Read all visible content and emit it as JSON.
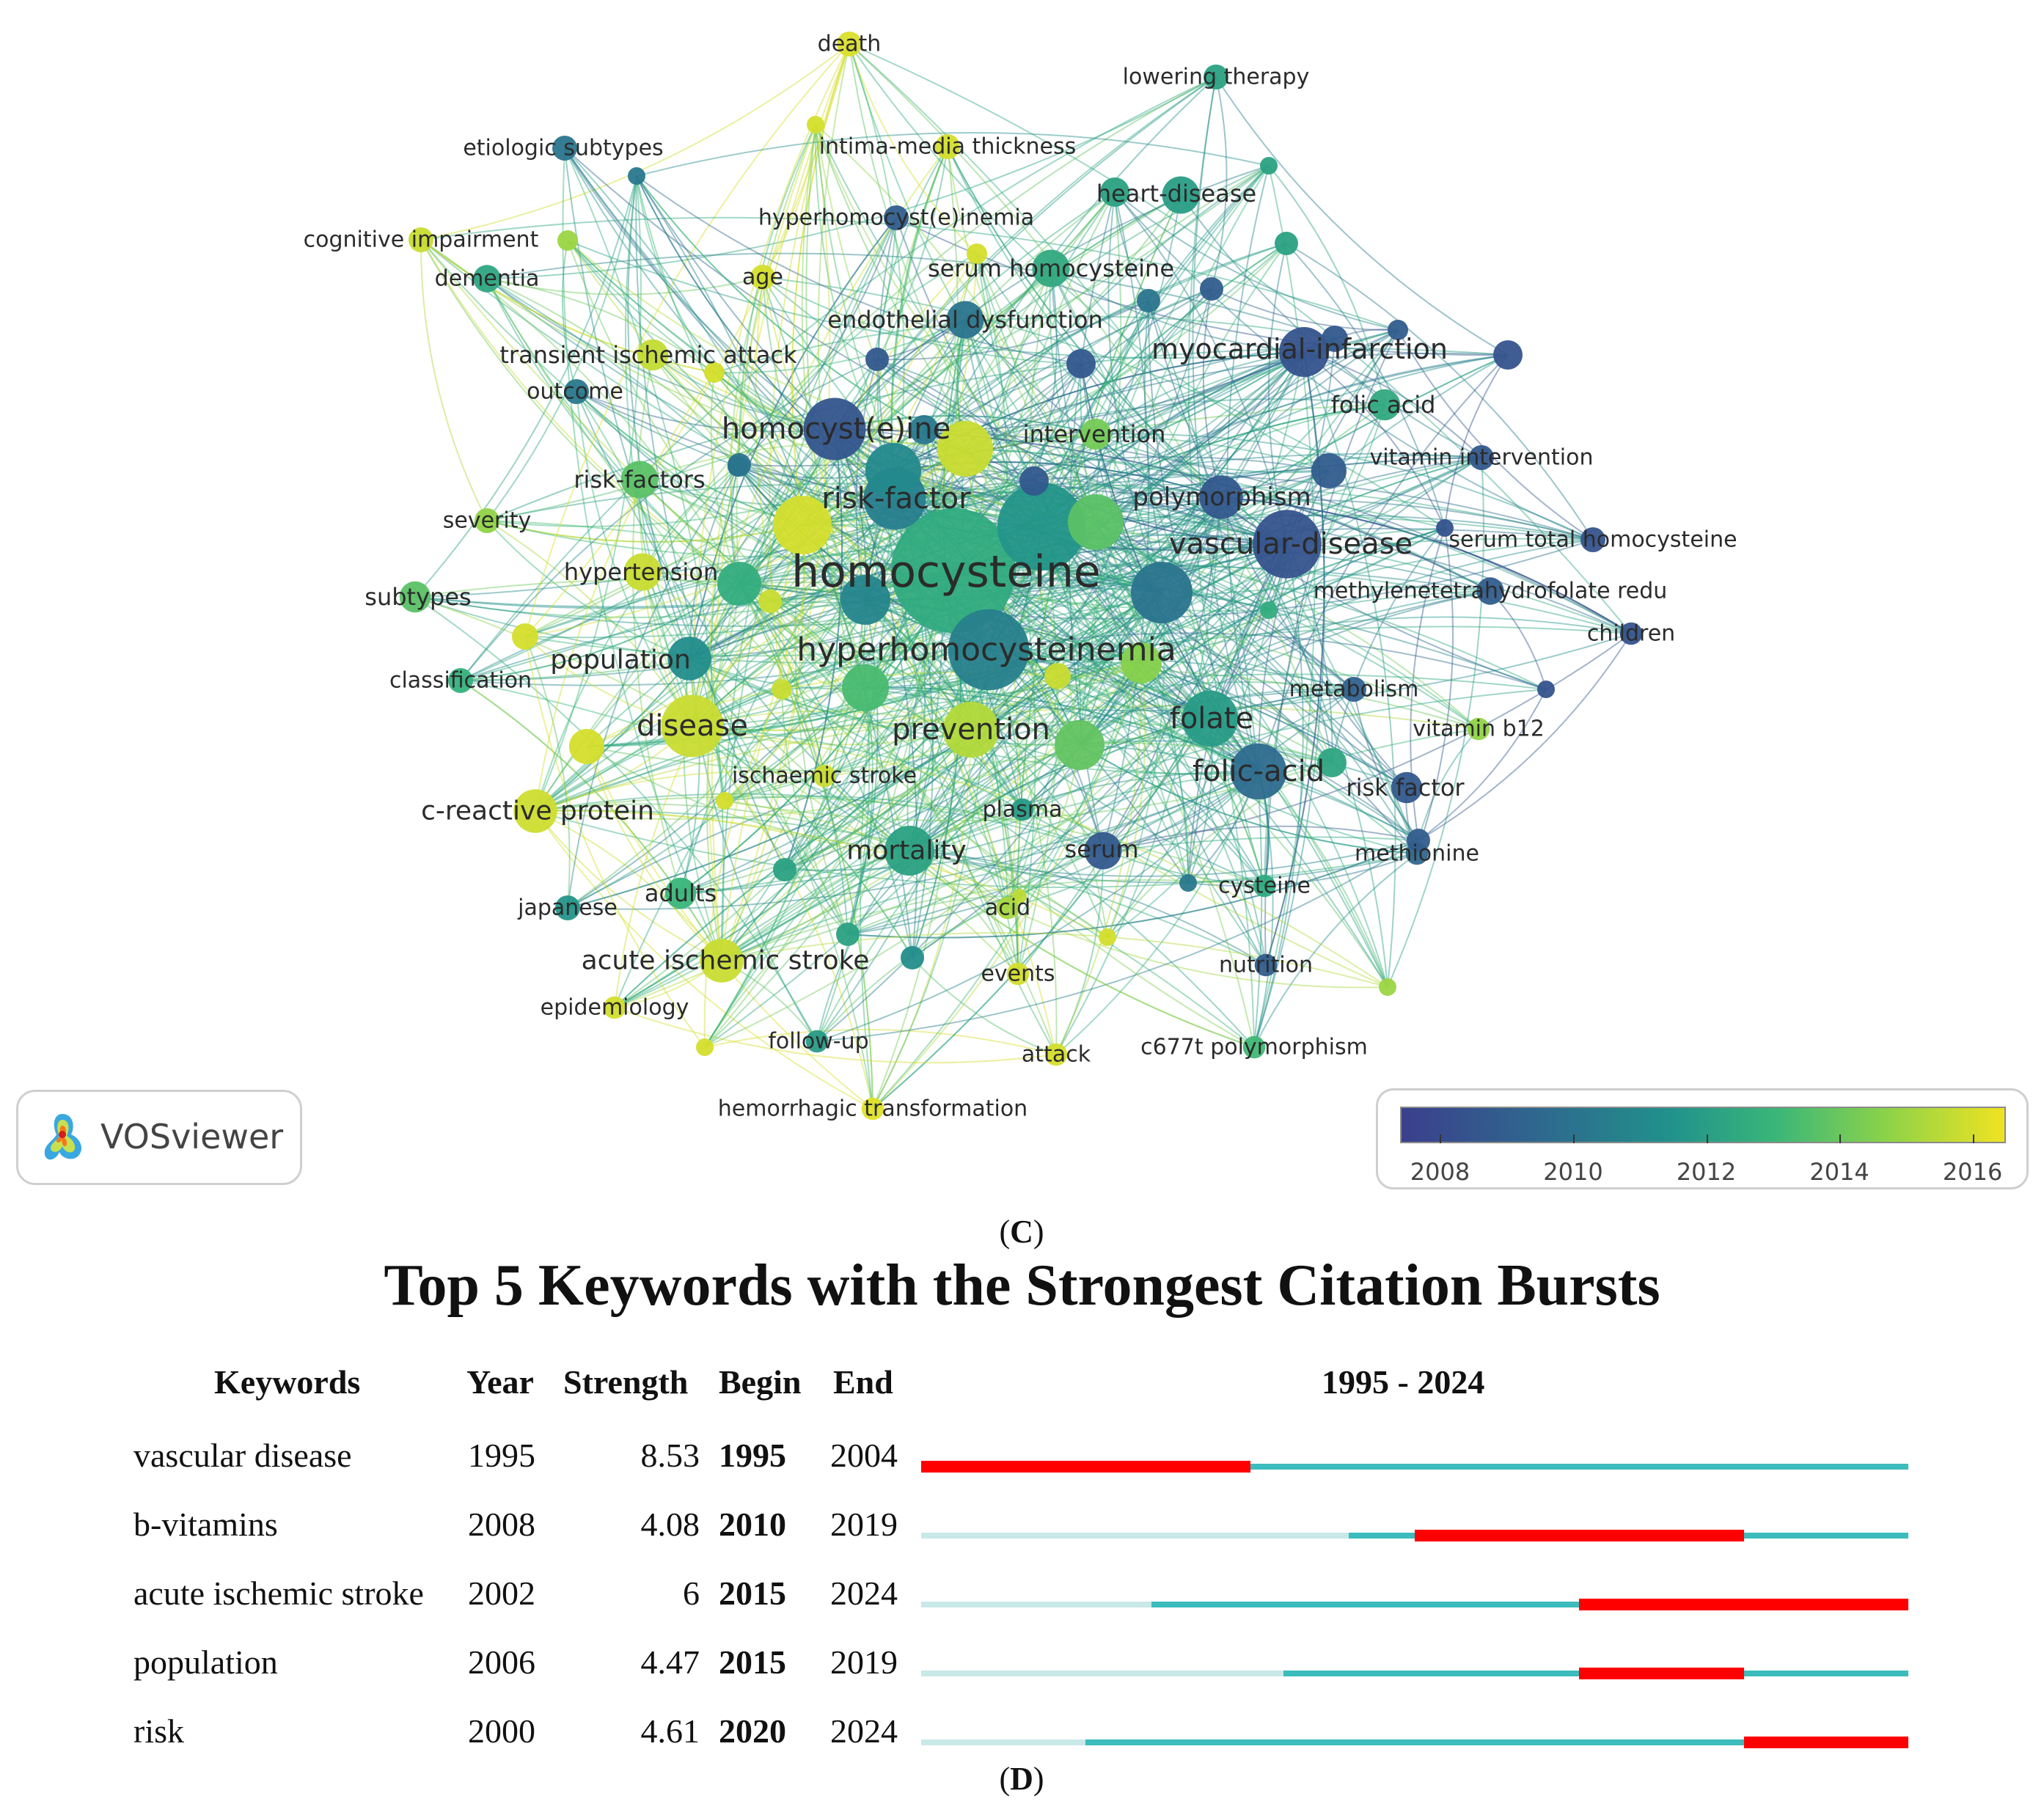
{
  "chart_data": [
    {
      "type": "network",
      "panel": "(C)",
      "tool": "VOSviewer",
      "colorbar": {
        "ticks": [
          2008,
          2010,
          2012,
          2014,
          2016
        ],
        "range": [
          2007.4,
          2016.5
        ],
        "colors": [
          "#3b3f8c",
          "#2d6c8e",
          "#21928b",
          "#3ab679",
          "#8ad24a",
          "#f0e321"
        ]
      },
      "nodes": [
        {
          "label": "homocysteine",
          "year": 2012.3,
          "weight": 10
        },
        {
          "label": "hyperhomocysteinemia",
          "year": 2010.2,
          "weight": 6.5
        },
        {
          "label": "risk-factor",
          "year": 2010.1,
          "weight": 5
        },
        {
          "label": "homocyst(e)ine",
          "year": 2008.3,
          "weight": 5
        },
        {
          "label": "vascular-disease",
          "year": 2008.2,
          "weight": 5.5
        },
        {
          "label": "disease",
          "year": 2015.8,
          "weight": 5
        },
        {
          "label": "prevention",
          "year": 2015.4,
          "weight": 4.5
        },
        {
          "label": "folic-acid",
          "year": 2009.2,
          "weight": 4.5
        },
        {
          "label": "folate",
          "year": 2011.5,
          "weight": 4.5
        },
        {
          "label": "mortality",
          "year": 2011.8,
          "weight": 4
        },
        {
          "label": "population",
          "year": 2010.8,
          "weight": 3.5
        },
        {
          "label": "myocardial-infarction",
          "year": 2008.2,
          "weight": 4
        },
        {
          "label": "polymorphism",
          "year": 2008.4,
          "weight": 3.5
        },
        {
          "label": "c-reactive protein",
          "year": 2015.9,
          "weight": 3.5
        },
        {
          "label": "acute ischemic stroke",
          "year": 2015.8,
          "weight": 3.5
        },
        {
          "label": "serum",
          "year": 2008.5,
          "weight": 3
        },
        {
          "label": "endothelial dysfunction",
          "year": 2009.6,
          "weight": 3
        },
        {
          "label": "hypertension",
          "year": 2015.8,
          "weight": 3
        },
        {
          "label": "risk-factors",
          "year": 2013.6,
          "weight": 3
        },
        {
          "label": "intervention",
          "year": 2014.2,
          "weight": 2.5
        },
        {
          "label": "heart-disease",
          "year": 2011.6,
          "weight": 3
        },
        {
          "label": "serum homocysteine",
          "year": 2012.2,
          "weight": 3
        },
        {
          "label": "folic acid",
          "year": 2012.2,
          "weight": 2.5
        },
        {
          "label": "risk factor",
          "year": 2008.4,
          "weight": 2.5
        },
        {
          "label": "transient ischemic attack",
          "year": 2015.7,
          "weight": 2.5
        },
        {
          "label": "adults",
          "year": 2012.8,
          "weight": 2.5
        },
        {
          "label": "subtypes",
          "year": 2013.6,
          "weight": 2.5
        },
        {
          "label": "dementia",
          "year": 2012.0,
          "weight": 2.2
        },
        {
          "label": "severity",
          "year": 2014.8,
          "weight": 2
        },
        {
          "label": "classification",
          "year": 2012.6,
          "weight": 2
        },
        {
          "label": "outcome",
          "year": 2009.8,
          "weight": 2
        },
        {
          "label": "age",
          "year": 2016.0,
          "weight": 2
        },
        {
          "label": "cognitive impairment",
          "year": 2015.8,
          "weight": 2
        },
        {
          "label": "hyperhomocyst(e)inemia",
          "year": 2008.6,
          "weight": 2
        },
        {
          "label": "intima-media thickness",
          "year": 2016.0,
          "weight": 2
        },
        {
          "label": "etiologic subtypes",
          "year": 2009.6,
          "weight": 2
        },
        {
          "label": "lowering therapy",
          "year": 2011.8,
          "weight": 2
        },
        {
          "label": "death",
          "year": 2016.1,
          "weight": 2
        },
        {
          "label": "vitamin intervention",
          "year": 2008.4,
          "weight": 2
        },
        {
          "label": "serum total homocysteine",
          "year": 2008.2,
          "weight": 2
        },
        {
          "label": "methylenetetrahydrofolate redu",
          "year": 2008.6,
          "weight": 2.2
        },
        {
          "label": "children",
          "year": 2008.2,
          "weight": 1.8
        },
        {
          "label": "metabolism",
          "year": 2008.8,
          "weight": 2
        },
        {
          "label": "vitamin b12",
          "year": 2014.8,
          "weight": 1.8
        },
        {
          "label": "methionine",
          "year": 2009.0,
          "weight": 1.8
        },
        {
          "label": "cysteine",
          "year": 2012.3,
          "weight": 1.8
        },
        {
          "label": "nutrition",
          "year": 2008.6,
          "weight": 1.8
        },
        {
          "label": "plasma",
          "year": 2011.5,
          "weight": 1.8
        },
        {
          "label": "acid",
          "year": 2015.2,
          "weight": 1.8
        },
        {
          "label": "events",
          "year": 2016.0,
          "weight": 1.8
        },
        {
          "label": "attack",
          "year": 2016.0,
          "weight": 1.8
        },
        {
          "label": "c677t polymorphism",
          "year": 2013.0,
          "weight": 1.8
        },
        {
          "label": "hemorrhagic transformation",
          "year": 2016.2,
          "weight": 1.8
        },
        {
          "label": "follow-up",
          "year": 2011.5,
          "weight": 1.8
        },
        {
          "label": "epidemiology",
          "year": 2016.0,
          "weight": 1.8
        },
        {
          "label": "japanese",
          "year": 2011.2,
          "weight": 2
        },
        {
          "label": "ischaemic stroke",
          "year": 2015.8,
          "weight": 1.8
        }
      ]
    },
    {
      "type": "table",
      "panel": "(D)",
      "title": "Top 5 Keywords with the Strongest Citation Bursts",
      "columns": [
        "Keywords",
        "Year",
        "Strength",
        "Begin",
        "End",
        "1995 - 2024"
      ],
      "range": [
        1995,
        2024
      ],
      "rows": [
        {
          "keyword": "vascular disease",
          "year": "1995",
          "strength": "8.53",
          "begin": "1995",
          "end": "2004"
        },
        {
          "keyword": "b-vitamins",
          "year": "2008",
          "strength": "4.08",
          "begin": "2010",
          "end": "2019"
        },
        {
          "keyword": "acute ischemic stroke",
          "year": "2002",
          "strength": "6",
          "begin": "2015",
          "end": "2024"
        },
        {
          "keyword": "population",
          "year": "2006",
          "strength": "4.47",
          "begin": "2015",
          "end": "2019"
        },
        {
          "keyword": "risk",
          "year": "2000",
          "strength": "4.61",
          "begin": "2020",
          "end": "2024"
        }
      ],
      "colors": {
        "burst": "#ff0000",
        "active": "#3cbcbc",
        "before": "#c9e8e8"
      }
    }
  ],
  "vosviewer_logo": "VOSviewer",
  "panel_c_label": "(C)",
  "panel_d_label": "(D)"
}
